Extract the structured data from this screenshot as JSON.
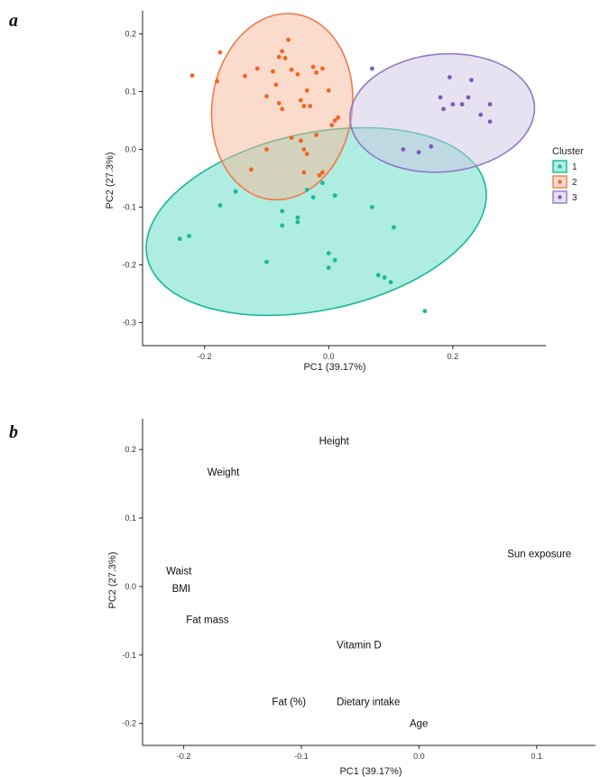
{
  "panels": [
    {
      "label": "a"
    },
    {
      "label": "b"
    }
  ],
  "chart_data": [
    {
      "type": "scatter",
      "title": "",
      "xlabel": "PC1 (39.17%)",
      "ylabel": "PC2 (27.3%)",
      "xlim": [
        -0.3,
        0.35
      ],
      "ylim": [
        -0.34,
        0.24
      ],
      "xticks": [
        "-0.2",
        "0.0",
        "0.2"
      ],
      "yticks": [
        "-0.3",
        "-0.2",
        "-0.1",
        "0.0",
        "0.1",
        "0.2"
      ],
      "grid": false,
      "legend": {
        "title": "Cluster",
        "position": "right"
      },
      "series": [
        {
          "name": "1",
          "color": "#1bb89a",
          "points": [
            {
              "x": -0.24,
              "y": -0.155
            },
            {
              "x": -0.225,
              "y": -0.15
            },
            {
              "x": -0.175,
              "y": -0.097
            },
            {
              "x": -0.15,
              "y": -0.073
            },
            {
              "x": -0.1,
              "y": -0.195
            },
            {
              "x": -0.075,
              "y": -0.107
            },
            {
              "x": -0.075,
              "y": -0.132
            },
            {
              "x": -0.05,
              "y": -0.118
            },
            {
              "x": -0.05,
              "y": -0.126
            },
            {
              "x": -0.025,
              "y": -0.083
            },
            {
              "x": -0.01,
              "y": -0.058
            },
            {
              "x": 0.0,
              "y": -0.18
            },
            {
              "x": 0.0,
              "y": -0.205
            },
            {
              "x": 0.01,
              "y": -0.192
            },
            {
              "x": 0.01,
              "y": -0.08
            },
            {
              "x": 0.07,
              "y": -0.1
            },
            {
              "x": 0.08,
              "y": -0.218
            },
            {
              "x": 0.09,
              "y": -0.222
            },
            {
              "x": 0.1,
              "y": -0.23
            },
            {
              "x": 0.105,
              "y": -0.135
            },
            {
              "x": 0.155,
              "y": -0.28
            },
            {
              "x": -0.035,
              "y": -0.07
            }
          ]
        },
        {
          "name": "2",
          "color": "#f26522",
          "points": [
            {
              "x": -0.22,
              "y": 0.128
            },
            {
              "x": -0.18,
              "y": 0.118
            },
            {
              "x": -0.175,
              "y": 0.168
            },
            {
              "x": -0.135,
              "y": 0.127
            },
            {
              "x": -0.115,
              "y": 0.14
            },
            {
              "x": -0.1,
              "y": 0.092
            },
            {
              "x": -0.09,
              "y": 0.135
            },
            {
              "x": -0.085,
              "y": 0.112
            },
            {
              "x": -0.08,
              "y": 0.08
            },
            {
              "x": -0.075,
              "y": 0.07
            },
            {
              "x": -0.08,
              "y": 0.16
            },
            {
              "x": -0.075,
              "y": 0.17
            },
            {
              "x": -0.07,
              "y": 0.158
            },
            {
              "x": -0.065,
              "y": 0.19
            },
            {
              "x": -0.06,
              "y": 0.138
            },
            {
              "x": -0.05,
              "y": 0.13
            },
            {
              "x": -0.045,
              "y": 0.085
            },
            {
              "x": -0.04,
              "y": 0.075
            },
            {
              "x": -0.035,
              "y": 0.102
            },
            {
              "x": -0.025,
              "y": 0.143
            },
            {
              "x": -0.02,
              "y": 0.133
            },
            {
              "x": -0.03,
              "y": 0.075
            },
            {
              "x": -0.01,
              "y": 0.14
            },
            {
              "x": 0.0,
              "y": 0.102
            },
            {
              "x": 0.005,
              "y": 0.042
            },
            {
              "x": 0.01,
              "y": 0.05
            },
            {
              "x": 0.015,
              "y": 0.055
            },
            {
              "x": -0.125,
              "y": -0.035
            },
            {
              "x": -0.1,
              "y": 0.0
            },
            {
              "x": -0.06,
              "y": 0.02
            },
            {
              "x": -0.045,
              "y": 0.015
            },
            {
              "x": -0.04,
              "y": 0.0
            },
            {
              "x": -0.035,
              "y": -0.008
            },
            {
              "x": -0.02,
              "y": 0.025
            },
            {
              "x": -0.04,
              "y": -0.04
            },
            {
              "x": -0.015,
              "y": -0.045
            },
            {
              "x": -0.01,
              "y": -0.04
            }
          ]
        },
        {
          "name": "3",
          "color": "#7d5ab8",
          "points": [
            {
              "x": 0.07,
              "y": 0.14
            },
            {
              "x": 0.12,
              "y": 0.0
            },
            {
              "x": 0.145,
              "y": -0.005
            },
            {
              "x": 0.165,
              "y": 0.005
            },
            {
              "x": 0.18,
              "y": 0.09
            },
            {
              "x": 0.185,
              "y": 0.07
            },
            {
              "x": 0.195,
              "y": 0.125
            },
            {
              "x": 0.2,
              "y": 0.078
            },
            {
              "x": 0.215,
              "y": 0.078
            },
            {
              "x": 0.225,
              "y": 0.09
            },
            {
              "x": 0.23,
              "y": 0.12
            },
            {
              "x": 0.245,
              "y": 0.06
            },
            {
              "x": 0.26,
              "y": 0.078
            },
            {
              "x": 0.26,
              "y": 0.048
            }
          ]
        }
      ],
      "ellipses": [
        {
          "series": "1",
          "cx": -0.02,
          "cy": -0.125,
          "rx": 0.2785,
          "ry": 0.1535,
          "angle_deg": -12,
          "fill": "#5fd9c4",
          "stroke": "#17b896"
        },
        {
          "series": "2",
          "cx": -0.075,
          "cy": 0.074,
          "rx": 0.113,
          "ry": 0.162,
          "angle_deg": 8,
          "fill": "#f7b89a",
          "stroke": "#ef7a4a"
        },
        {
          "series": "3",
          "cx": 0.183,
          "cy": 0.063,
          "rx": 0.149,
          "ry": 0.102,
          "angle_deg": -5,
          "fill": "#cfc5e6",
          "stroke": "#9178c8"
        }
      ]
    },
    {
      "type": "scatter",
      "title": "",
      "xlabel": "PC1 (39.17%)",
      "ylabel": "PC2 (27.3%)",
      "xlim": [
        -0.235,
        0.15
      ],
      "ylim": [
        -0.232,
        0.245
      ],
      "xticks": [
        "-0.2",
        "-0.1",
        "0.0",
        "0.1"
      ],
      "yticks": [
        "-0.2",
        "-0.1",
        "0.0",
        "0.1",
        "0.2"
      ],
      "grid": false,
      "labels": [
        {
          "text": "Height",
          "x": -0.085,
          "y": 0.213
        },
        {
          "text": "Weight",
          "x": -0.18,
          "y": 0.167
        },
        {
          "text": "Sun exposure",
          "x": 0.075,
          "y": 0.048
        },
        {
          "text": "Waist",
          "x": -0.215,
          "y": 0.023
        },
        {
          "text": "BMI",
          "x": -0.21,
          "y": -0.003
        },
        {
          "text": "Fat mass",
          "x": -0.198,
          "y": -0.048
        },
        {
          "text": "Vitamin D",
          "x": -0.07,
          "y": -0.085
        },
        {
          "text": "Fat (%)",
          "x": -0.125,
          "y": -0.168
        },
        {
          "text": "Dietary intake",
          "x": -0.07,
          "y": -0.168
        },
        {
          "text": "Age",
          "x": -0.008,
          "y": -0.2
        }
      ]
    }
  ]
}
